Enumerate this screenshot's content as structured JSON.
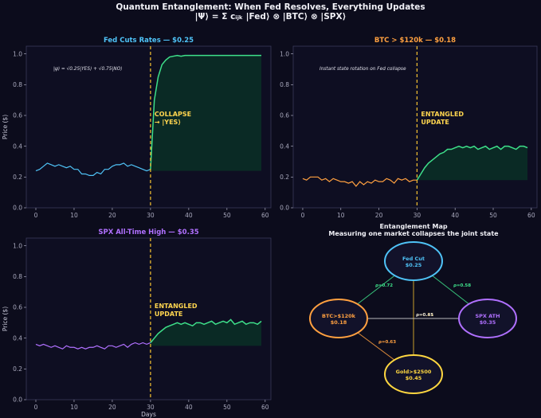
{
  "header": {
    "title_line1": "Quantum Entanglement: When Fed Resolves, Everything Updates",
    "title_line2": "|Ψ⟩ = Σ cᵢⱼₖ |Fed⟩ ⊗ |BTC⟩ ⊗ |SPX⟩"
  },
  "colors": {
    "background": "#0c0c1c",
    "axes_bg": "#0e0e22",
    "spine": "#3a3a5a",
    "fed": "#4fc3f7",
    "btc": "#ffa040",
    "spx": "#b070ff",
    "gold": "#ffd740",
    "collapse_line": "#e8b830",
    "post": "#3ee08a",
    "post_fill": "#0b2c26",
    "annotation": "#ffd54f",
    "tick": "#a8a8bc"
  },
  "chart_data": [
    {
      "type": "line",
      "id": "fed",
      "title": "Fed Cuts Rates — $0.25",
      "xlabel": "",
      "ylabel": "Price ($)",
      "xlim": [
        -2.5,
        61.5
      ],
      "ylim": [
        0,
        1.05
      ],
      "xticks": [
        0,
        10,
        20,
        30,
        40,
        50,
        60
      ],
      "yticks": [
        0.0,
        0.2,
        0.4,
        0.6,
        0.8,
        1.0
      ],
      "collapse_day": 30,
      "annotation": "COLLAPSE\n→ |YES⟩",
      "note": "|ψ⟩ = √0.25|YES⟩ + √0.75|NO⟩",
      "fill_baseline": 0.24,
      "series": [
        {
          "name": "pre",
          "x": [
            0,
            1,
            2,
            3,
            4,
            5,
            6,
            7,
            8,
            9,
            10,
            11,
            12,
            13,
            14,
            15,
            16,
            17,
            18,
            19,
            20,
            21,
            22,
            23,
            24,
            25,
            26,
            27,
            28,
            29,
            30
          ],
          "values": [
            0.24,
            0.25,
            0.27,
            0.29,
            0.28,
            0.27,
            0.28,
            0.27,
            0.26,
            0.27,
            0.25,
            0.25,
            0.22,
            0.22,
            0.21,
            0.21,
            0.23,
            0.22,
            0.25,
            0.25,
            0.27,
            0.28,
            0.28,
            0.29,
            0.27,
            0.28,
            0.27,
            0.26,
            0.25,
            0.24,
            0.25
          ]
        },
        {
          "name": "post",
          "x": [
            30,
            31,
            32,
            33,
            34,
            35,
            36,
            37,
            38,
            39,
            40,
            41,
            42,
            43,
            44,
            45,
            46,
            47,
            48,
            49,
            50,
            51,
            52,
            53,
            54,
            55,
            56,
            57,
            58,
            59
          ],
          "values": [
            0.25,
            0.7,
            0.85,
            0.93,
            0.96,
            0.98,
            0.985,
            0.99,
            0.985,
            0.99,
            0.99,
            0.99,
            0.99,
            0.99,
            0.99,
            0.99,
            0.99,
            0.99,
            0.99,
            0.99,
            0.99,
            0.99,
            0.99,
            0.99,
            0.99,
            0.99,
            0.99,
            0.99,
            0.99,
            0.99
          ]
        }
      ]
    },
    {
      "type": "line",
      "id": "btc",
      "title": "BTC > $120k — $0.18",
      "xlabel": "",
      "ylabel": "",
      "xlim": [
        -2.5,
        61.5
      ],
      "ylim": [
        0,
        1.05
      ],
      "xticks": [
        0,
        10,
        20,
        30,
        40,
        50,
        60
      ],
      "yticks": [
        0.0,
        0.2,
        0.4,
        0.6,
        0.8,
        1.0
      ],
      "collapse_day": 30,
      "annotation": "ENTANGLED\nUPDATE",
      "note": "Instant state rotation on Fed collapse",
      "fill_baseline": 0.18,
      "series": [
        {
          "name": "pre",
          "x": [
            0,
            1,
            2,
            3,
            4,
            5,
            6,
            7,
            8,
            9,
            10,
            11,
            12,
            13,
            14,
            15,
            16,
            17,
            18,
            19,
            20,
            21,
            22,
            23,
            24,
            25,
            26,
            27,
            28,
            29,
            30
          ],
          "values": [
            0.19,
            0.18,
            0.2,
            0.2,
            0.2,
            0.18,
            0.19,
            0.17,
            0.19,
            0.18,
            0.17,
            0.17,
            0.16,
            0.17,
            0.14,
            0.17,
            0.15,
            0.17,
            0.16,
            0.18,
            0.17,
            0.17,
            0.19,
            0.18,
            0.16,
            0.19,
            0.18,
            0.19,
            0.17,
            0.18,
            0.18
          ]
        },
        {
          "name": "post",
          "x": [
            30,
            31,
            32,
            33,
            34,
            35,
            36,
            37,
            38,
            39,
            40,
            41,
            42,
            43,
            44,
            45,
            46,
            47,
            48,
            49,
            50,
            51,
            52,
            53,
            54,
            55,
            56,
            57,
            58,
            59
          ],
          "values": [
            0.18,
            0.22,
            0.26,
            0.29,
            0.31,
            0.33,
            0.35,
            0.36,
            0.38,
            0.38,
            0.39,
            0.4,
            0.39,
            0.4,
            0.39,
            0.4,
            0.38,
            0.39,
            0.4,
            0.38,
            0.39,
            0.4,
            0.38,
            0.4,
            0.4,
            0.39,
            0.38,
            0.4,
            0.4,
            0.39
          ]
        }
      ]
    },
    {
      "type": "line",
      "id": "spx",
      "title": "SPX All-Time High — $0.35",
      "xlabel": "Days",
      "ylabel": "Price ($)",
      "xlim": [
        -2.5,
        61.5
      ],
      "ylim": [
        0,
        1.05
      ],
      "xticks": [
        0,
        10,
        20,
        30,
        40,
        50,
        60
      ],
      "yticks": [
        0.0,
        0.2,
        0.4,
        0.6,
        0.8,
        1.0
      ],
      "collapse_day": 30,
      "annotation": "ENTANGLED\nUPDATE",
      "note": "",
      "fill_baseline": 0.35,
      "series": [
        {
          "name": "pre",
          "x": [
            0,
            1,
            2,
            3,
            4,
            5,
            6,
            7,
            8,
            9,
            10,
            11,
            12,
            13,
            14,
            15,
            16,
            17,
            18,
            19,
            20,
            21,
            22,
            23,
            24,
            25,
            26,
            27,
            28,
            29,
            30
          ],
          "values": [
            0.36,
            0.35,
            0.36,
            0.35,
            0.34,
            0.35,
            0.34,
            0.33,
            0.35,
            0.34,
            0.34,
            0.33,
            0.34,
            0.33,
            0.34,
            0.34,
            0.35,
            0.34,
            0.33,
            0.35,
            0.35,
            0.34,
            0.35,
            0.36,
            0.34,
            0.36,
            0.37,
            0.36,
            0.37,
            0.36,
            0.37
          ]
        },
        {
          "name": "post",
          "x": [
            30,
            31,
            32,
            33,
            34,
            35,
            36,
            37,
            38,
            39,
            40,
            41,
            42,
            43,
            44,
            45,
            46,
            47,
            48,
            49,
            50,
            51,
            52,
            53,
            54,
            55,
            56,
            57,
            58,
            59
          ],
          "values": [
            0.37,
            0.4,
            0.43,
            0.45,
            0.47,
            0.48,
            0.49,
            0.5,
            0.49,
            0.5,
            0.49,
            0.48,
            0.5,
            0.5,
            0.49,
            0.5,
            0.51,
            0.49,
            0.5,
            0.51,
            0.5,
            0.52,
            0.49,
            0.5,
            0.51,
            0.49,
            0.5,
            0.5,
            0.49,
            0.51
          ]
        }
      ]
    },
    {
      "type": "network",
      "id": "entanglement-map",
      "title": "Entanglement Map",
      "subtitle": "Measuring one market collapses the joint state",
      "nodes": [
        {
          "id": "fed",
          "label": "Fed Cut",
          "value": "$0.25",
          "color": "#4fc3f7"
        },
        {
          "id": "btc",
          "label": "BTC>$120k",
          "value": "$0.18",
          "color": "#ffa040"
        },
        {
          "id": "spx",
          "label": "SPX ATH",
          "value": "$0.35",
          "color": "#b070ff"
        },
        {
          "id": "gold",
          "label": "Gold>$2500",
          "value": "$0.45",
          "color": "#ffd740"
        }
      ],
      "edges": [
        {
          "from": "fed",
          "to": "btc",
          "label": "ρ=0.72",
          "color": "#3ee08a"
        },
        {
          "from": "fed",
          "to": "spx",
          "label": "ρ=0.58",
          "color": "#3ee08a"
        },
        {
          "from": "btc",
          "to": "gold",
          "label": "ρ=0.63",
          "color": "#ffa040"
        },
        {
          "from": "fed",
          "to": "gold",
          "label": "ρ=0.31",
          "color": "#e8b830"
        },
        {
          "from": "btc",
          "to": "spx",
          "label": "ρ=0.45",
          "color": "#d8d8d8"
        }
      ]
    }
  ]
}
